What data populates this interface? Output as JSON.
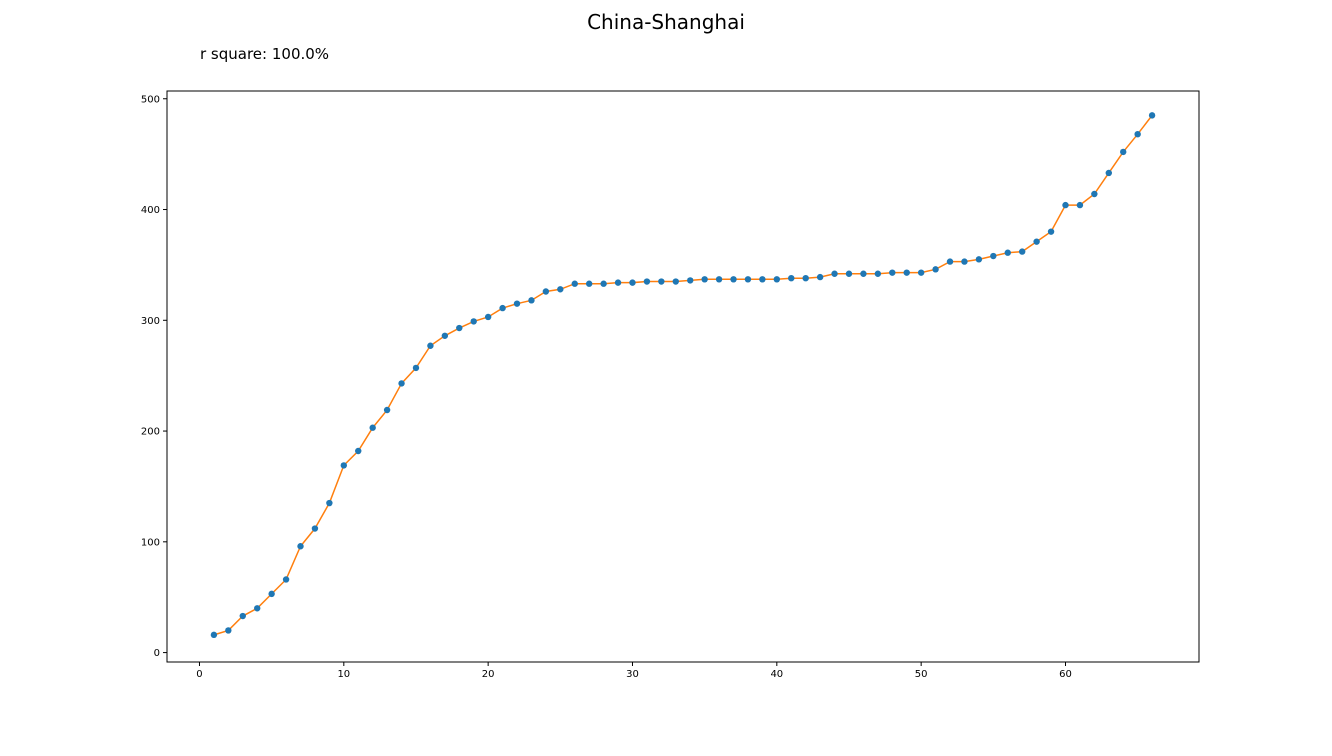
{
  "chart_data": {
    "type": "line",
    "title": "China-Shanghai",
    "subtitle": "r square: 100.0%",
    "xlabel": "",
    "ylabel": "",
    "xlim": [
      -2.25,
      69.25
    ],
    "ylim": [
      -8.5,
      507
    ],
    "xticks": [
      0,
      10,
      20,
      30,
      40,
      50,
      60
    ],
    "yticks": [
      0,
      100,
      200,
      300,
      400,
      500
    ],
    "grid": false,
    "colors": {
      "points": "#1f77b4",
      "fit_line": "#ff7f0e"
    },
    "series": [
      {
        "style": "scatter",
        "x": [
          1,
          2,
          3,
          4,
          5,
          6,
          7,
          8,
          9,
          10,
          11,
          12,
          13,
          14,
          15,
          16,
          17,
          18,
          19,
          20,
          21,
          22,
          23,
          24,
          25,
          26,
          27,
          28,
          29,
          30,
          31,
          32,
          33,
          34,
          35,
          36,
          37,
          38,
          39,
          40,
          41,
          42,
          43,
          44,
          45,
          46,
          47,
          48,
          49,
          50,
          51,
          52,
          53,
          54,
          55,
          56,
          57,
          58,
          59,
          60,
          61,
          62,
          63,
          64,
          65,
          66
        ],
        "y": [
          16,
          20,
          33,
          40,
          53,
          66,
          96,
          112,
          135,
          169,
          182,
          203,
          219,
          243,
          257,
          277,
          286,
          293,
          299,
          303,
          311,
          315,
          318,
          326,
          328,
          333,
          333,
          333,
          334,
          334,
          335,
          335,
          335,
          336,
          337,
          337,
          337,
          337,
          337,
          337,
          338,
          338,
          339,
          342,
          342,
          342,
          342,
          343,
          343,
          343,
          346,
          353,
          353,
          355,
          358,
          361,
          362,
          371,
          380,
          404,
          404,
          414,
          433,
          452,
          468,
          485
        ]
      },
      {
        "style": "line",
        "x": [
          1,
          2,
          3,
          4,
          5,
          6,
          7,
          8,
          9,
          10,
          11,
          12,
          13,
          14,
          15,
          16,
          17,
          18,
          19,
          20,
          21,
          22,
          23,
          24,
          25,
          26,
          27,
          28,
          29,
          30,
          31,
          32,
          33,
          34,
          35,
          36,
          37,
          38,
          39,
          40,
          41,
          42,
          43,
          44,
          45,
          46,
          47,
          48,
          49,
          50,
          51,
          52,
          53,
          54,
          55,
          56,
          57,
          58,
          59,
          60,
          61,
          62,
          63,
          64,
          65,
          66
        ],
        "y": [
          16,
          20,
          33,
          40,
          53,
          66,
          96,
          112,
          135,
          169,
          182,
          203,
          219,
          243,
          257,
          277,
          286,
          293,
          299,
          303,
          311,
          315,
          318,
          326,
          328,
          333,
          333,
          333,
          334,
          334,
          335,
          335,
          335,
          336,
          337,
          337,
          337,
          337,
          337,
          337,
          338,
          338,
          339,
          342,
          342,
          342,
          342,
          343,
          343,
          343,
          346,
          353,
          353,
          355,
          358,
          361,
          362,
          371,
          380,
          404,
          404,
          414,
          433,
          452,
          468,
          485
        ]
      }
    ]
  }
}
